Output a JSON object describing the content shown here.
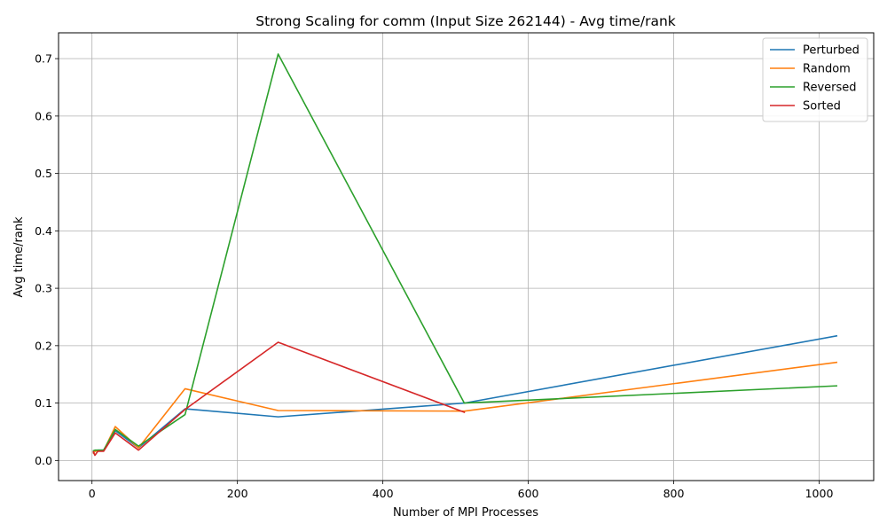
{
  "chart_data": {
    "type": "line",
    "title": "Strong Scaling for comm (Input Size 262144) - Avg time/rank",
    "xlabel": "Number of MPI Processes",
    "ylabel": "Avg time/rank",
    "xlim": [
      -46,
      1075
    ],
    "ylim": [
      -0.035,
      0.745
    ],
    "x_ticks": [
      0,
      200,
      400,
      600,
      800,
      1000
    ],
    "y_ticks": [
      0.0,
      0.1,
      0.2,
      0.3,
      0.4,
      0.5,
      0.6,
      0.7
    ],
    "x_tick_labels": [
      "0",
      "200",
      "400",
      "600",
      "800",
      "1000"
    ],
    "y_tick_labels": [
      "0.0",
      "0.1",
      "0.2",
      "0.3",
      "0.4",
      "0.5",
      "0.6",
      "0.7"
    ],
    "grid": true,
    "legend_position": "top-right",
    "x": [
      2,
      4,
      8,
      16,
      32,
      64,
      128,
      256,
      512,
      1024
    ],
    "series": [
      {
        "name": "Perturbed",
        "color": "#1f77b4",
        "values": [
          0.013,
          0.016,
          0.018,
          0.018,
          0.052,
          0.022,
          0.09,
          0.076,
          0.1,
          0.217
        ]
      },
      {
        "name": "Random",
        "color": "#ff7f0e",
        "values": [
          0.013,
          0.016,
          0.017,
          0.017,
          0.059,
          0.022,
          0.125,
          0.087,
          0.086,
          0.171
        ]
      },
      {
        "name": "Reversed",
        "color": "#2ca02c",
        "values": [
          0.017,
          0.018,
          0.018,
          0.018,
          0.054,
          0.025,
          0.08,
          0.708,
          0.1,
          0.13
        ]
      },
      {
        "name": "Sorted",
        "color": "#d62728",
        "values": [
          0.015,
          0.009,
          0.016,
          0.016,
          0.048,
          0.018,
          0.089,
          0.206,
          0.084,
          null
        ]
      }
    ]
  }
}
